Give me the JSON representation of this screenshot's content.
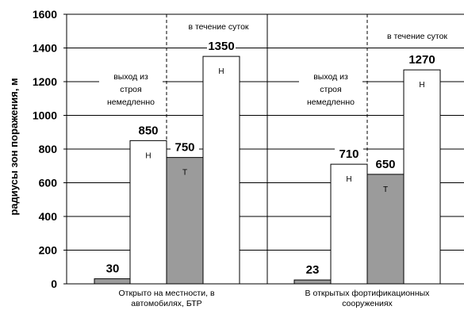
{
  "chart_data": {
    "type": "bar",
    "ylabel": "радиусы зон поражения, м",
    "ylim": [
      0,
      1600
    ],
    "yticks": [
      "0",
      "200",
      "400",
      "600",
      "800",
      "1000",
      "1200",
      "1400",
      "1600"
    ],
    "grid": true,
    "categories": [
      "Открыто на местности, в автомобилях, БТР",
      "В открытых фортификационных сооружениях"
    ],
    "category_lines": [
      [
        "Открыто на местности, в",
        "автомобилях, БТР"
      ],
      [
        "В открытых фортификационных",
        "сооружениях"
      ]
    ],
    "groups": [
      {
        "category": "Открыто на местности, в автомобилях, БТР",
        "bars": [
          {
            "value": 30,
            "label": "30",
            "inner": "",
            "color": "#9b9b9b"
          },
          {
            "value": 850,
            "label": "850",
            "inner": "Н",
            "color": "#ffffff"
          },
          {
            "value": 750,
            "label": "750",
            "inner": "Т",
            "color": "#9b9b9b"
          },
          {
            "value": 1350,
            "label": "1350",
            "inner": "Н",
            "color": "#ffffff"
          }
        ],
        "notes": {
          "immediate": [
            "выход из",
            "строя",
            "немедленно"
          ],
          "within_day": "в течение суток"
        }
      },
      {
        "category": "В открытых фортификационных сооружениях",
        "bars": [
          {
            "value": 23,
            "label": "23",
            "inner": "",
            "color": "#9b9b9b"
          },
          {
            "value": 710,
            "label": "710",
            "inner": "Н",
            "color": "#ffffff"
          },
          {
            "value": 650,
            "label": "650",
            "inner": "Т",
            "color": "#9b9b9b"
          },
          {
            "value": 1270,
            "label": "1270",
            "inner": "Н",
            "color": "#ffffff"
          }
        ],
        "notes": {
          "immediate": [
            "выход из",
            "строя",
            "немедленно"
          ],
          "within_day": "в течение суток"
        }
      }
    ]
  }
}
